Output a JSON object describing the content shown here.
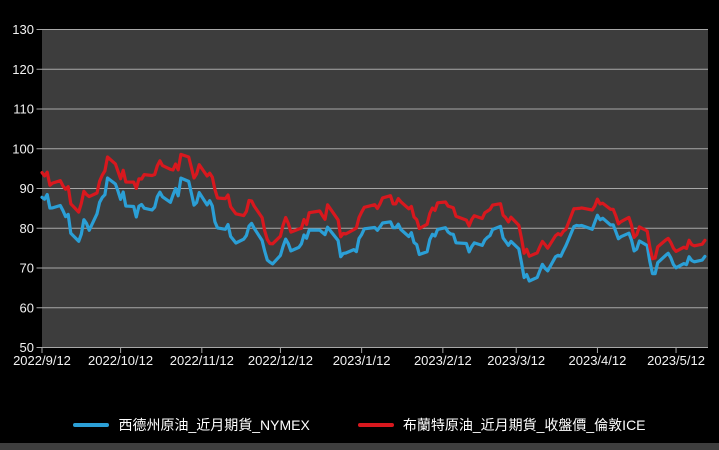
{
  "window": {
    "background": "#000000",
    "plot_background": "#3d3d3d",
    "gridline_color": "#a8a8a8",
    "axis_text_color": "#f2f2f2",
    "bottom_bar_color": "#3e3e3e"
  },
  "legend": {
    "items": [
      {
        "label": "西德州原油_近月期貨_NYMEX",
        "color": "#2b9fd6"
      },
      {
        "label": "布蘭特原油_近月期貨_收盤價_倫敦ICE",
        "color": "#d8181e"
      }
    ]
  },
  "chart_data": {
    "type": "line",
    "title": "",
    "xlabel": "",
    "ylabel": "",
    "ylim": [
      50,
      130
    ],
    "yticks": [
      50,
      60,
      70,
      80,
      90,
      100,
      110,
      120,
      130
    ],
    "xticks": [
      "2022/9/12",
      "2022/10/12",
      "2022/11/12",
      "2022/12/12",
      "2023/1/12",
      "2023/2/12",
      "2023/3/12",
      "2023/4/12",
      "2023/5/12"
    ],
    "grid": "horizontal-only",
    "legend_position": "bottom",
    "x": [
      "2022/9/12",
      "2022/9/13",
      "2022/9/14",
      "2022/9/15",
      "2022/9/16",
      "2022/9/19",
      "2022/9/20",
      "2022/9/21",
      "2022/9/22",
      "2022/9/23",
      "2022/9/26",
      "2022/9/27",
      "2022/9/28",
      "2022/9/29",
      "2022/9/30",
      "2022/10/3",
      "2022/10/4",
      "2022/10/5",
      "2022/10/6",
      "2022/10/7",
      "2022/10/10",
      "2022/10/11",
      "2022/10/12",
      "2022/10/13",
      "2022/10/14",
      "2022/10/17",
      "2022/10/18",
      "2022/10/19",
      "2022/10/20",
      "2022/10/21",
      "2022/10/24",
      "2022/10/25",
      "2022/10/26",
      "2022/10/27",
      "2022/10/28",
      "2022/10/31",
      "2022/11/1",
      "2022/11/2",
      "2022/11/3",
      "2022/11/4",
      "2022/11/7",
      "2022/11/8",
      "2022/11/9",
      "2022/11/10",
      "2022/11/11",
      "2022/11/14",
      "2022/11/15",
      "2022/11/16",
      "2022/11/17",
      "2022/11/18",
      "2022/11/21",
      "2022/11/22",
      "2022/11/23",
      "2022/11/25",
      "2022/11/28",
      "2022/11/29",
      "2022/11/30",
      "2022/12/1",
      "2022/12/2",
      "2022/12/5",
      "2022/12/6",
      "2022/12/7",
      "2022/12/8",
      "2022/12/9",
      "2022/12/12",
      "2022/12/13",
      "2022/12/14",
      "2022/12/15",
      "2022/12/16",
      "2022/12/19",
      "2022/12/20",
      "2022/12/21",
      "2022/12/22",
      "2022/12/23",
      "2022/12/27",
      "2022/12/28",
      "2022/12/29",
      "2022/12/30",
      "2023/1/3",
      "2023/1/4",
      "2023/1/5",
      "2023/1/6",
      "2023/1/9",
      "2023/1/10",
      "2023/1/11",
      "2023/1/12",
      "2023/1/13",
      "2023/1/17",
      "2023/1/18",
      "2023/1/19",
      "2023/1/20",
      "2023/1/23",
      "2023/1/24",
      "2023/1/25",
      "2023/1/26",
      "2023/1/27",
      "2023/1/30",
      "2023/1/31",
      "2023/2/1",
      "2023/2/2",
      "2023/2/3",
      "2023/2/6",
      "2023/2/7",
      "2023/2/8",
      "2023/2/9",
      "2023/2/10",
      "2023/2/13",
      "2023/2/14",
      "2023/2/15",
      "2023/2/16",
      "2023/2/17",
      "2023/2/21",
      "2023/2/22",
      "2023/2/23",
      "2023/2/24",
      "2023/2/27",
      "2023/2/28",
      "2023/3/1",
      "2023/3/2",
      "2023/3/3",
      "2023/3/6",
      "2023/3/7",
      "2023/3/8",
      "2023/3/9",
      "2023/3/10",
      "2023/3/13",
      "2023/3/14",
      "2023/3/15",
      "2023/3/16",
      "2023/3/17",
      "2023/3/20",
      "2023/3/21",
      "2023/3/22",
      "2023/3/23",
      "2023/3/24",
      "2023/3/27",
      "2023/3/28",
      "2023/3/29",
      "2023/3/30",
      "2023/3/31",
      "2023/4/3",
      "2023/4/4",
      "2023/4/5",
      "2023/4/6",
      "2023/4/10",
      "2023/4/11",
      "2023/4/12",
      "2023/4/13",
      "2023/4/14",
      "2023/4/17",
      "2023/4/18",
      "2023/4/19",
      "2023/4/20",
      "2023/4/21",
      "2023/4/24",
      "2023/4/25",
      "2023/4/26",
      "2023/4/27",
      "2023/4/28",
      "2023/5/1",
      "2023/5/2",
      "2023/5/3",
      "2023/5/4",
      "2023/5/5",
      "2023/5/8",
      "2023/5/9",
      "2023/5/10",
      "2023/5/11",
      "2023/5/12",
      "2023/5/15",
      "2023/5/16",
      "2023/5/17",
      "2023/5/18",
      "2023/5/19",
      "2023/5/22",
      "2023/5/23"
    ],
    "series": [
      {
        "name": "西德州原油_近月期貨_NYMEX",
        "color": "#2b9fd6",
        "values": [
          87.78,
          87.31,
          88.48,
          85.1,
          85.11,
          85.73,
          84.45,
          82.94,
          83.49,
          78.74,
          76.71,
          78.5,
          82.15,
          81.23,
          79.49,
          83.63,
          86.52,
          87.76,
          88.45,
          92.64,
          91.13,
          89.35,
          87.27,
          89.11,
          85.61,
          85.46,
          82.82,
          85.55,
          85.98,
          85.05,
          84.58,
          85.32,
          87.91,
          89.08,
          87.9,
          86.53,
          88.37,
          90.0,
          88.17,
          92.61,
          91.79,
          88.91,
          85.83,
          86.47,
          88.96,
          85.87,
          86.92,
          85.59,
          81.64,
          80.08,
          79.73,
          80.95,
          77.94,
          76.28,
          77.24,
          78.2,
          80.55,
          81.22,
          79.98,
          76.93,
          74.25,
          72.01,
          71.46,
          71.02,
          73.17,
          75.39,
          77.28,
          76.11,
          74.29,
          75.19,
          76.09,
          78.29,
          77.49,
          79.56,
          79.53,
          78.96,
          78.4,
          80.26,
          76.93,
          72.84,
          73.67,
          73.77,
          74.63,
          74.12,
          77.41,
          78.39,
          79.86,
          80.18,
          79.48,
          80.33,
          81.31,
          81.62,
          80.13,
          80.15,
          81.01,
          79.68,
          77.9,
          78.87,
          76.41,
          75.88,
          73.39,
          74.11,
          77.14,
          78.47,
          78.06,
          79.72,
          80.14,
          79.06,
          78.59,
          78.49,
          76.34,
          76.16,
          74.05,
          75.39,
          76.32,
          75.68,
          77.05,
          77.69,
          78.16,
          79.68,
          80.46,
          77.58,
          76.66,
          75.72,
          76.68,
          74.8,
          71.33,
          67.61,
          68.35,
          66.74,
          67.64,
          69.33,
          70.9,
          69.96,
          69.26,
          72.81,
          73.2,
          72.97,
          74.37,
          75.67,
          80.42,
          80.71,
          80.61,
          80.7,
          79.74,
          81.53,
          83.26,
          82.16,
          82.52,
          80.83,
          80.86,
          79.16,
          77.37,
          77.87,
          78.76,
          77.07,
          74.3,
          74.76,
          76.78,
          75.66,
          71.66,
          68.6,
          68.56,
          71.34,
          73.16,
          73.71,
          72.56,
          70.87,
          70.04,
          71.11,
          70.86,
          72.83,
          71.86,
          71.55,
          71.99,
          72.91
        ]
      },
      {
        "name": "布蘭特原油_近月期貨_收盤價_倫敦ICE",
        "color": "#d8181e",
        "values": [
          94.0,
          93.17,
          94.1,
          90.84,
          91.35,
          92.0,
          90.62,
          89.83,
          90.46,
          86.15,
          84.06,
          86.27,
          89.32,
          88.49,
          87.96,
          88.86,
          91.8,
          93.37,
          94.42,
          97.92,
          96.19,
          94.29,
          92.45,
          94.57,
          91.63,
          91.62,
          90.03,
          92.41,
          92.38,
          93.5,
          93.26,
          93.52,
          95.69,
          96.96,
          95.77,
          94.83,
          94.65,
          96.16,
          94.67,
          98.57,
          97.92,
          95.36,
          92.65,
          93.67,
          95.99,
          93.14,
          93.86,
          92.86,
          89.78,
          87.62,
          87.45,
          88.36,
          85.41,
          83.63,
          83.19,
          84.25,
          86.97,
          86.88,
          85.57,
          82.68,
          79.35,
          77.17,
          76.15,
          76.1,
          77.99,
          80.68,
          82.7,
          81.21,
          79.04,
          79.8,
          79.99,
          82.2,
          80.98,
          83.92,
          84.33,
          83.26,
          82.26,
          85.91,
          82.1,
          77.84,
          78.69,
          78.57,
          79.65,
          80.1,
          82.67,
          84.03,
          85.28,
          85.92,
          84.98,
          86.16,
          87.63,
          88.19,
          86.13,
          86.12,
          87.47,
          86.66,
          84.9,
          85.46,
          82.84,
          82.17,
          79.94,
          80.99,
          83.69,
          85.09,
          84.5,
          86.39,
          86.61,
          85.58,
          85.38,
          85.14,
          83.0,
          82.05,
          80.6,
          82.21,
          83.16,
          82.45,
          83.89,
          84.31,
          84.75,
          85.83,
          86.18,
          83.29,
          82.66,
          81.59,
          82.78,
          80.77,
          77.45,
          73.69,
          74.7,
          72.97,
          73.79,
          75.32,
          76.69,
          75.91,
          74.99,
          78.12,
          78.65,
          78.28,
          79.27,
          79.77,
          84.93,
          84.94,
          84.99,
          85.12,
          84.58,
          85.61,
          87.33,
          86.09,
          86.31,
          84.76,
          84.77,
          83.12,
          81.1,
          81.66,
          82.73,
          80.77,
          77.69,
          78.37,
          80.33,
          79.31,
          75.32,
          72.33,
          72.5,
          75.3,
          77.01,
          77.44,
          76.41,
          74.98,
          74.17,
          75.23,
          74.91,
          76.96,
          75.86,
          75.58,
          75.99,
          76.96
        ]
      }
    ]
  }
}
